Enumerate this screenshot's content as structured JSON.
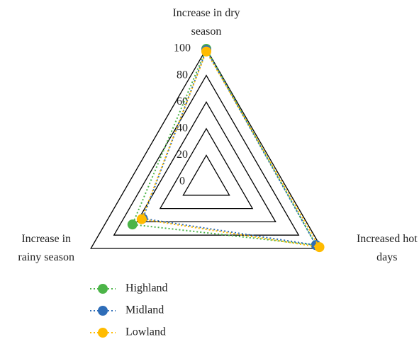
{
  "chart_data": {
    "type": "radar",
    "categories": [
      "Increase in dry season",
      "Increased hot days",
      "Increase in rainy season"
    ],
    "series": [
      {
        "name": "Highland",
        "color": "#4cb448",
        "values": [
          100,
          95,
          64
        ]
      },
      {
        "name": "Midland",
        "color": "#2e6db8",
        "values": [
          99,
          95,
          55
        ]
      },
      {
        "name": "Lowland",
        "color": "#ffbb00",
        "values": [
          98,
          98,
          56
        ]
      }
    ],
    "rlim": [
      0,
      100
    ],
    "rticks": [
      0,
      20,
      40,
      60,
      80,
      100
    ],
    "grid": true
  }
}
